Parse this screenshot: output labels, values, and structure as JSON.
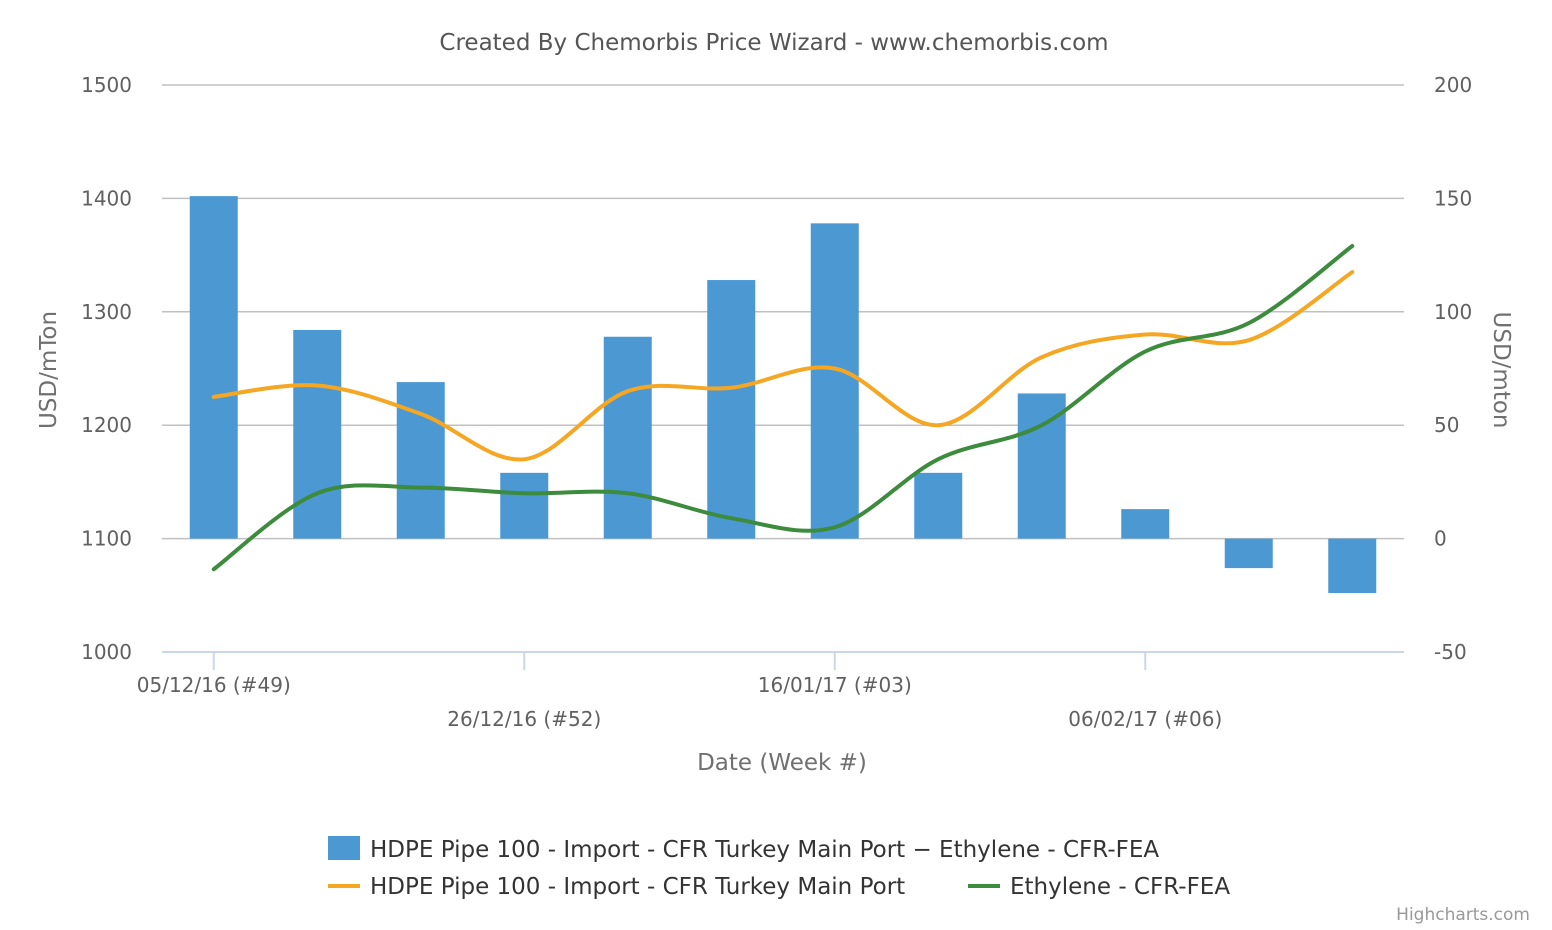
{
  "chart_data": {
    "type": "bar+line",
    "title": "Created By Chemorbis Price Wizard - www.chemorbis.com",
    "xlabel": "Date (Week #)",
    "ylabel_left": "USD/mTon",
    "ylabel_right": "USD/mton",
    "ylim_left": [
      1000,
      1500
    ],
    "ylim_right": [
      -50,
      200
    ],
    "yticks_left": [
      "1000",
      "1100",
      "1200",
      "1300",
      "1400",
      "1500"
    ],
    "yticks_right": [
      "-50",
      "0",
      "50",
      "100",
      "150",
      "200"
    ],
    "x_tick_labels": [
      {
        "index": 0,
        "label": "05/12/16 (#49)"
      },
      {
        "index": 3,
        "label": "26/12/16 (#52)"
      },
      {
        "index": 6,
        "label": "16/01/17 (#03)"
      },
      {
        "index": 9,
        "label": "06/02/17 (#06)"
      }
    ],
    "series": [
      {
        "name": "HDPE Pipe 100 - Import - CFR Turkey Main Port − Ethylene - CFR-FEA",
        "type": "bar",
        "axis": "right",
        "color": "#4b98d3",
        "values": [
          151,
          92,
          69,
          29,
          89,
          114,
          139,
          29,
          64,
          13,
          -13,
          -24
        ]
      },
      {
        "name": "HDPE Pipe 100 - Import - CFR Turkey Main Port",
        "type": "line",
        "axis": "left",
        "color": "#f5a623",
        "values": [
          1225,
          1235,
          1210,
          1170,
          1230,
          1233,
          1250,
          1200,
          1260,
          1280,
          1275,
          1335
        ]
      },
      {
        "name": "Ethylene - CFR-FEA",
        "type": "line",
        "axis": "left",
        "color": "#3d8b3d",
        "values": [
          1073,
          1140,
          1145,
          1140,
          1140,
          1118,
          1110,
          1170,
          1200,
          1265,
          1290,
          1358
        ]
      }
    ],
    "grid": true,
    "legend_position": "bottom-center",
    "credits": "Highcharts.com"
  }
}
